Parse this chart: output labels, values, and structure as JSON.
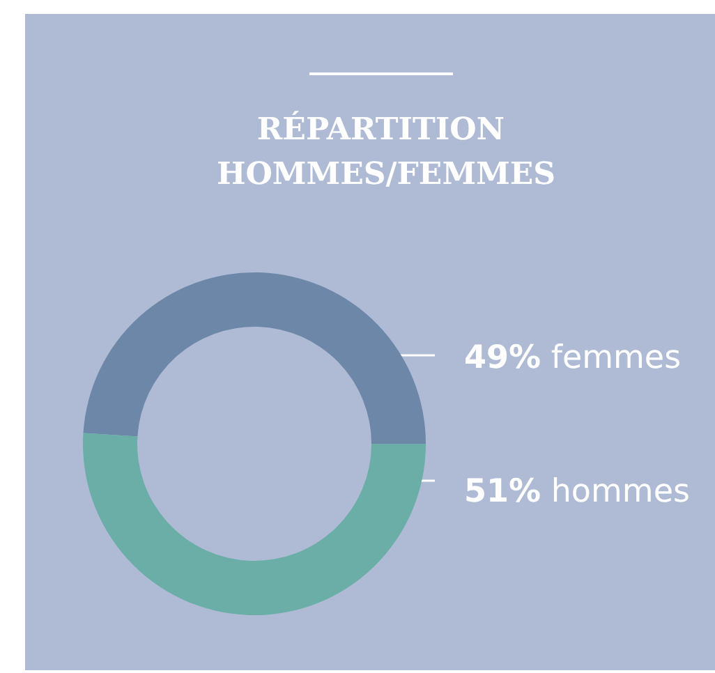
{
  "chart_data": {
    "type": "donut",
    "title": "RÉPARTITION HOMMES/FEMMES",
    "categories": [
      "femmes",
      "hommes"
    ],
    "values": [
      49,
      51
    ],
    "colors": [
      "#6d87a9",
      "#6aaea7"
    ],
    "value_labels": [
      "49%",
      "51%"
    ]
  }
}
